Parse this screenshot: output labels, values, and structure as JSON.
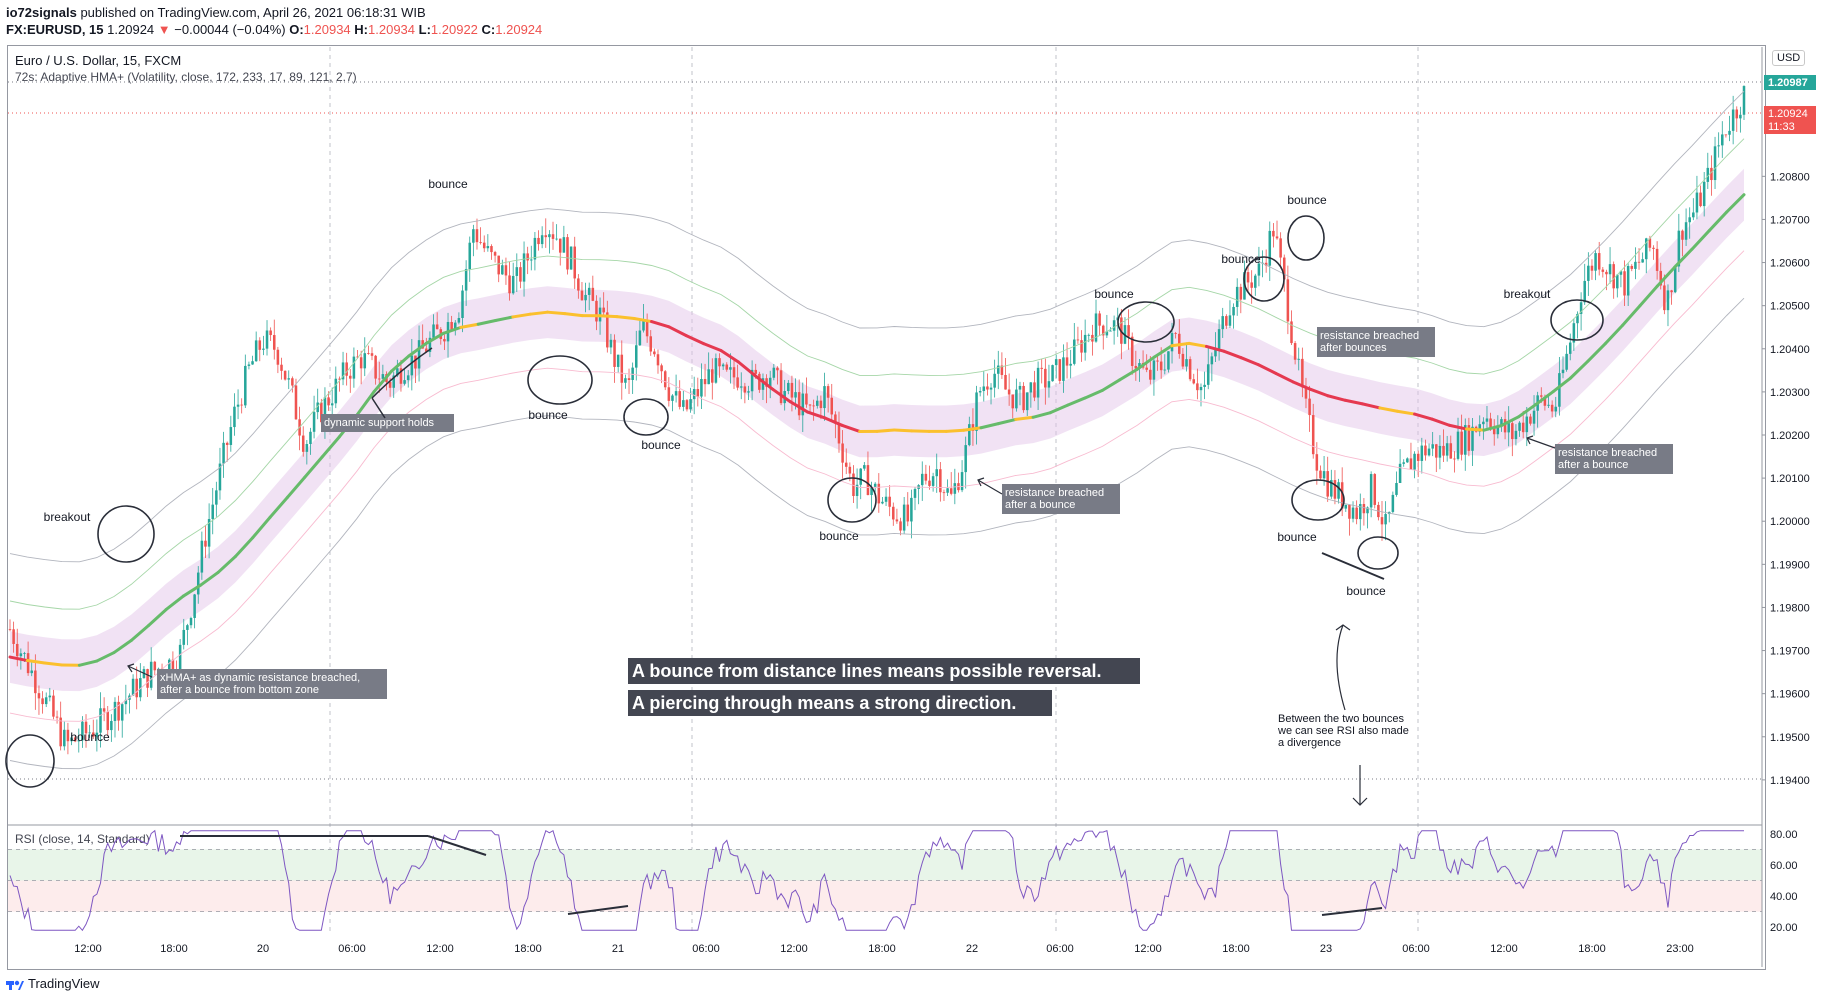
{
  "header": {
    "author": "io72signals",
    "published_text": "published on TradingView.com, April 26, 2021 06:18:31 WIB",
    "symbol": "FX:EURUSD, 15",
    "last": "1.20924",
    "change": "−0.00044 (−0.04%)",
    "o_label": "O:",
    "o_value": "1.20934",
    "h_label": "H:",
    "h_value": "1.20934",
    "l_label": "L:",
    "l_value": "1.20922",
    "c_label": "C:",
    "c_value": "1.20924"
  },
  "legend": {
    "title": "Euro / U.S. Dollar, 15, FXCM",
    "indicator": "72s: Adaptive HMA+ (Volatility, close, 172, 233, 17, 89, 121, 2.7)",
    "rsi": "RSI (close, 14, Standard)"
  },
  "currency_button": "USD",
  "footer": {
    "brand": "TradingView"
  },
  "price_badges": {
    "green": "1.20987",
    "red": "1.20924",
    "red_time": "11:33"
  },
  "chart_data": [
    {
      "type": "candlestick",
      "title": "Euro / U.S. Dollar, 15, FXCM",
      "ylim": [
        1.193,
        1.211
      ],
      "y_ticks": [
        1.208,
        1.207,
        1.206,
        1.205,
        1.204,
        1.203,
        1.202,
        1.201,
        1.2,
        1.199,
        1.198,
        1.197,
        1.196,
        1.195,
        1.194
      ],
      "y_tick_labels": [
        "1.20800",
        "1.20700",
        "1.20600",
        "1.20500",
        "1.20400",
        "1.20300",
        "1.20200",
        "1.20100",
        "1.20000",
        "1.19900",
        "1.19800",
        "1.19700",
        "1.19600",
        "1.19500",
        "1.19400"
      ],
      "x_tick_labels": [
        "12:00",
        "18:00",
        "20",
        "06:00",
        "12:00",
        "18:00",
        "21",
        "06:00",
        "12:00",
        "18:00",
        "22",
        "06:00",
        "12:00",
        "18:00",
        "23",
        "06:00",
        "12:00",
        "18:00",
        "23:00"
      ],
      "close_path": [
        [
          0,
          1.1975
        ],
        [
          4,
          1.1962
        ],
        [
          8,
          1.1948
        ],
        [
          12,
          1.1952
        ],
        [
          16,
          1.1958
        ],
        [
          20,
          1.1965
        ],
        [
          24,
          1.1968
        ],
        [
          26,
          1.1982
        ],
        [
          28,
          1.1998
        ],
        [
          30,
          1.2012
        ],
        [
          32,
          1.2025
        ],
        [
          34,
          1.2035
        ],
        [
          36,
          1.2042
        ],
        [
          38,
          1.204
        ],
        [
          40,
          1.203
        ],
        [
          42,
          1.2018
        ],
        [
          44,
          1.2025
        ],
        [
          46,
          1.203
        ],
        [
          48,
          1.2035
        ],
        [
          50,
          1.2038
        ],
        [
          52,
          1.2035
        ],
        [
          54,
          1.2032
        ],
        [
          56,
          1.2036
        ],
        [
          58,
          1.2038
        ],
        [
          60,
          1.2042
        ],
        [
          62,
          1.2045
        ],
        [
          64,
          1.205
        ],
        [
          66,
          1.2068
        ],
        [
          68,
          1.2062
        ],
        [
          70,
          1.2058
        ],
        [
          72,
          1.2055
        ],
        [
          74,
          1.2062
        ],
        [
          76,
          1.207
        ],
        [
          78,
          1.2066
        ],
        [
          80,
          1.206
        ],
        [
          82,
          1.2052
        ],
        [
          84,
          1.2048
        ],
        [
          86,
          1.2038
        ],
        [
          88,
          1.203
        ],
        [
          90,
          1.2045
        ],
        [
          92,
          1.204
        ],
        [
          94,
          1.203
        ],
        [
          96,
          1.2025
        ],
        [
          98,
          1.203
        ],
        [
          100,
          1.2035
        ],
        [
          102,
          1.2033
        ],
        [
          104,
          1.2034
        ],
        [
          106,
          1.2032
        ],
        [
          108,
          1.2035
        ],
        [
          110,
          1.203
        ],
        [
          112,
          1.2028
        ],
        [
          114,
          1.2025
        ],
        [
          116,
          1.203
        ],
        [
          118,
          1.202
        ],
        [
          120,
          1.2008
        ],
        [
          122,
          1.201
        ],
        [
          124,
          1.2005
        ],
        [
          126,
          1.2002
        ],
        [
          128,
          1.2
        ],
        [
          130,
          1.201
        ],
        [
          132,
          1.2012
        ],
        [
          134,
          1.2005
        ],
        [
          136,
          1.2015
        ],
        [
          138,
          1.203
        ],
        [
          140,
          1.2035
        ],
        [
          142,
          1.203
        ],
        [
          144,
          1.2028
        ],
        [
          146,
          1.2032
        ],
        [
          148,
          1.2033
        ],
        [
          150,
          1.2036
        ],
        [
          152,
          1.204
        ],
        [
          154,
          1.2045
        ],
        [
          156,
          1.2046
        ],
        [
          158,
          1.2045
        ],
        [
          160,
          1.2038
        ],
        [
          162,
          1.2033
        ],
        [
          164,
          1.2036
        ],
        [
          166,
          1.2043
        ],
        [
          168,
          1.2036
        ],
        [
          170,
          1.203
        ],
        [
          172,
          1.2042
        ],
        [
          174,
          1.2052
        ],
        [
          176,
          1.2055
        ],
        [
          178,
          1.2058
        ],
        [
          180,
          1.2068
        ],
        [
          182,
          1.205
        ],
        [
          184,
          1.203
        ],
        [
          186,
          1.2015
        ],
        [
          188,
          1.2008
        ],
        [
          190,
          1.2005
        ],
        [
          192,
          1.2002
        ],
        [
          194,
          1.2008
        ],
        [
          196,
          1.1998
        ],
        [
          198,
          1.201
        ],
        [
          200,
          1.2015
        ],
        [
          202,
          1.2017
        ],
        [
          204,
          1.2016
        ],
        [
          206,
          1.2018
        ],
        [
          208,
          1.202
        ],
        [
          210,
          1.2025
        ],
        [
          212,
          1.2022
        ],
        [
          214,
          1.202
        ],
        [
          216,
          1.2024
        ],
        [
          218,
          1.2028
        ],
        [
          220,
          1.2026
        ],
        [
          222,
          1.204
        ],
        [
          224,
          1.2055
        ],
        [
          226,
          1.2062
        ],
        [
          228,
          1.2058
        ],
        [
          230,
          1.2055
        ],
        [
          232,
          1.206
        ],
        [
          234,
          1.2064
        ],
        [
          236,
          1.205
        ],
        [
          238,
          1.2068
        ],
        [
          240,
          1.2072
        ],
        [
          242,
          1.208
        ],
        [
          244,
          1.209
        ],
        [
          246,
          1.2096
        ],
        [
          247,
          1.2099
        ]
      ],
      "x_range": [
        0,
        247
      ],
      "series": [
        {
          "name": "Adaptive HMA+"
        },
        {
          "name": "RSI"
        }
      ],
      "annotations": [
        "bounce",
        "breakout",
        "xHMA+ as dynamic resistance breached, after a bounce from bottom zone",
        "bounce",
        "dynamic support holds",
        "bounce",
        "bounce",
        "bounce",
        "bounce",
        "resistance breached after a bounce",
        "bounce",
        "bounce",
        "bounce",
        "resistance breached after bounces",
        "bounce",
        "bounce",
        "breakout",
        "resistance breached after a bounce",
        "Between the two bounces we can see RSI also made a divergence"
      ],
      "callouts": [
        "A bounce from distance lines means possible reversal.",
        "A piercing through means a strong direction."
      ]
    },
    {
      "type": "line",
      "title": "RSI (close, 14, Standard)",
      "ylim": [
        15,
        85
      ],
      "y_ticks": [
        80,
        60,
        40,
        20
      ],
      "y_tick_labels": [
        "80.00",
        "60.00",
        "40.00",
        "20.00"
      ],
      "bands": [
        30,
        50,
        70
      ]
    }
  ]
}
